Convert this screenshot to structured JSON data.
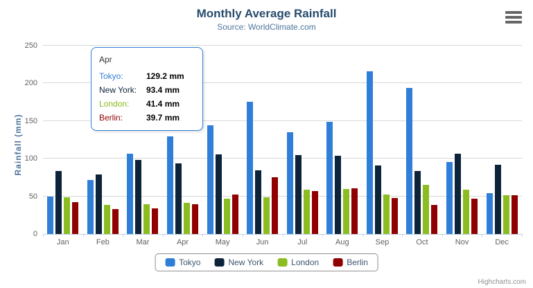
{
  "chart": {
    "title": "Monthly Average Rainfall",
    "subtitle": "Source: WorldClimate.com",
    "ylabel": "Rainfall (mm)",
    "credits": "Highcharts.com"
  },
  "chart_data": {
    "type": "bar",
    "title": "Monthly Average Rainfall",
    "subtitle": "Source: WorldClimate.com",
    "xlabel": "",
    "ylabel": "Rainfall (mm)",
    "ylim": [
      0,
      250
    ],
    "ytick_step": 50,
    "grid": true,
    "legend_position": "bottom",
    "value_suffix": "mm",
    "categories": [
      "Jan",
      "Feb",
      "Mar",
      "Apr",
      "May",
      "Jun",
      "Jul",
      "Aug",
      "Sep",
      "Oct",
      "Nov",
      "Dec"
    ],
    "series": [
      {
        "name": "Tokyo",
        "color": "#2f7ed8",
        "values": [
          49.9,
          71.5,
          106.4,
          129.2,
          144.0,
          176.0,
          135.6,
          148.5,
          216.4,
          194.1,
          95.6,
          54.4
        ]
      },
      {
        "name": "New York",
        "color": "#0d233a",
        "values": [
          83.6,
          78.8,
          98.5,
          93.4,
          106.0,
          84.5,
          105.0,
          104.3,
          91.2,
          83.5,
          106.6,
          92.3
        ]
      },
      {
        "name": "London",
        "color": "#8bbc21",
        "values": [
          48.9,
          38.8,
          39.3,
          41.4,
          47.0,
          48.3,
          59.0,
          59.6,
          52.4,
          65.2,
          59.3,
          51.2
        ]
      },
      {
        "name": "Berlin",
        "color": "#910000",
        "values": [
          42.4,
          33.2,
          34.5,
          39.7,
          52.6,
          75.5,
          57.4,
          60.4,
          47.6,
          39.1,
          46.8,
          51.1
        ]
      }
    ]
  },
  "tooltip": {
    "header": "Apr",
    "rows": [
      {
        "label": "Tokyo:",
        "value": "129.2 mm",
        "color": "#2f7ed8"
      },
      {
        "label": "New York:",
        "value": "93.4 mm",
        "color": "#0d233a"
      },
      {
        "label": "London:",
        "value": "41.4 mm",
        "color": "#8bbc21"
      },
      {
        "label": "Berlin:",
        "value": "39.7 mm",
        "color": "#910000"
      }
    ]
  },
  "colors": {
    "title": "#274b6d",
    "subtitle": "#4d759e",
    "axis_labels": "#606060",
    "gridline": "#d8d8d8",
    "axis_line": "#c0d0e0",
    "tooltip_border": "#2f7ed8"
  }
}
